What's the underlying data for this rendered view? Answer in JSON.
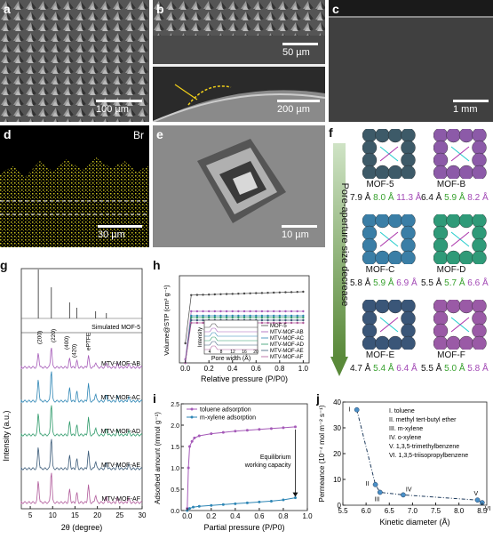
{
  "panels": {
    "a": {
      "label": "a",
      "scale": "100 µm"
    },
    "b": {
      "label": "b",
      "scale_top": "50 µm",
      "scale_bottom": "200 µm"
    },
    "c": {
      "label": "c",
      "scale": "1 mm"
    },
    "d": {
      "label": "d",
      "element": "Br",
      "scale": "30 µm"
    },
    "e": {
      "label": "e",
      "scale": "10 µm"
    },
    "f": {
      "label": "f",
      "axis_text": "Pore-aperture size decrease",
      "mofs": [
        {
          "name": "MOF-5",
          "apertures": [
            "7.9 Å",
            "8.0 Å",
            "11.3 Å"
          ]
        },
        {
          "name": "MOF-B",
          "apertures": [
            "6.4 Å",
            "5.9 Å",
            "8.2 Å"
          ]
        },
        {
          "name": "MOF-C",
          "apertures": [
            "5.8 Å",
            "5.9 Å",
            "6.9 Å"
          ]
        },
        {
          "name": "MOF-D",
          "apertures": [
            "5.5 Å",
            "5.7 Å",
            "6.6 Å"
          ]
        },
        {
          "name": "MOF-E",
          "apertures": [
            "4.7 Å",
            "5.4 Å",
            "6.4 Å"
          ]
        },
        {
          "name": "MOF-F",
          "apertures": [
            "5.5 Å",
            "5.0 Å",
            "5.8 Å"
          ]
        }
      ],
      "colors": {
        "MOF-5": "#3d5a68",
        "MOF-B": "#8c5aa8",
        "MOF-C": "#3a7ea6",
        "MOF-D": "#2f9a78",
        "MOF-E": "#3a5678",
        "MOF-F": "#9a5aa6"
      }
    },
    "g": {
      "label": "g",
      "xlabel": "2θ (degree)",
      "ylabel": "Intensity (a.u.)",
      "xticks": [
        "5",
        "10",
        "15",
        "20",
        "25",
        "30"
      ],
      "sim_label": "Simulated MOF-5",
      "peak_labels": [
        "(200)",
        "(220)",
        "(400)",
        "(420)",
        "ePTFE"
      ],
      "series": [
        "MTV-MOF-AB",
        "MTV-MOF-AC",
        "MTV-MOF-AD",
        "MTV-MOF-AE",
        "MTV-MOF-AF"
      ]
    },
    "h": {
      "label": "h",
      "xlabel": "Relative pressure (P/P0)",
      "ylabel": "Volume@STP (cm³ g⁻¹)",
      "xticks": [
        "0.0",
        "0.2",
        "0.4",
        "0.6",
        "0.8",
        "1.0"
      ],
      "inset_xlabel": "Pore width (Å)",
      "inset_ylabel": "Intensity",
      "inset_xticks": [
        "4",
        "8",
        "12",
        "16",
        "20"
      ],
      "legend": [
        "MOF-5",
        "MTV-MOF-AB",
        "MTV-MOF-AC",
        "MTV-MOF-AD",
        "MTV-MOF-AE",
        "MTV-MOF-AF"
      ]
    },
    "i": {
      "label": "i",
      "xlabel": "Partial pressure (P/P0)",
      "ylabel": "Adsorbed amount (mmol g⁻¹)",
      "xticks": [
        "0.0",
        "0.2",
        "0.4",
        "0.6",
        "0.8",
        "1.0"
      ],
      "yticks": [
        "0.0",
        "0.5",
        "1.0",
        "1.5",
        "2.0",
        "2.5"
      ],
      "legend": [
        "toluene adsorption",
        "m-xylene adsorption"
      ],
      "annotation_1": "Equilibrium",
      "annotation_2": "working capacity"
    },
    "j": {
      "label": "j",
      "xlabel": "Kinetic diameter (Å)",
      "ylabel": "Permeance (10⁻⁴ mol m⁻² s⁻¹)",
      "xticks": [
        "5.5",
        "6.0",
        "6.5",
        "7.0",
        "7.5",
        "8.0",
        "8.5"
      ],
      "yticks": [
        "0",
        "10",
        "20",
        "30",
        "40"
      ],
      "point_labels": [
        "I",
        "II",
        "III",
        "IV",
        "V",
        "VI"
      ],
      "legend": [
        "I. toluene",
        "II. methyl tert-butyl ether",
        "III. m-xylene",
        "IV. o-xylene",
        "V. 1,3,5-trimethylbenzene",
        "VI. 1,3,5-triisopropylbenzene"
      ]
    }
  },
  "chart_data": [
    {
      "type": "line",
      "title": "",
      "xlabel": "Partial pressure (P/P0)",
      "ylabel": "Adsorbed amount (mmol g⁻¹)",
      "ylim": [
        0,
        2.5
      ],
      "xlim": [
        0,
        1.0
      ],
      "series": [
        {
          "name": "toluene adsorption",
          "x": [
            0.0,
            0.01,
            0.02,
            0.04,
            0.06,
            0.1,
            0.2,
            0.3,
            0.4,
            0.5,
            0.6,
            0.7,
            0.8,
            0.9
          ],
          "values": [
            0.05,
            1.0,
            1.5,
            1.62,
            1.7,
            1.75,
            1.8,
            1.83,
            1.86,
            1.88,
            1.9,
            1.92,
            1.94,
            1.96
          ]
        },
        {
          "name": "m-xylene adsorption",
          "x": [
            0.0,
            0.02,
            0.05,
            0.1,
            0.2,
            0.3,
            0.4,
            0.5,
            0.6,
            0.7,
            0.8,
            0.9
          ],
          "values": [
            0.0,
            0.05,
            0.08,
            0.1,
            0.12,
            0.14,
            0.16,
            0.18,
            0.2,
            0.22,
            0.25,
            0.3
          ]
        }
      ]
    },
    {
      "type": "line",
      "title": "",
      "xlabel": "Kinetic diameter (Å)",
      "ylabel": "Permeance (10⁻⁴ mol m⁻² s⁻¹)",
      "xlim": [
        5.5,
        8.6
      ],
      "ylim": [
        0,
        40
      ],
      "series": [
        {
          "name": "",
          "x": [
            5.8,
            6.2,
            6.3,
            6.8,
            8.4,
            8.5
          ],
          "values": [
            37,
            8,
            5,
            4,
            2,
            1
          ],
          "labels": [
            "I",
            "II",
            "III",
            "IV",
            "V",
            "VI"
          ]
        }
      ]
    }
  ]
}
